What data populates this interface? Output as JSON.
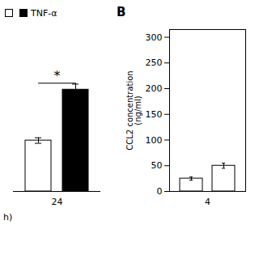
{
  "chart_data": [
    {
      "type": "bar",
      "categories": [
        "24"
      ],
      "series": [
        {
          "color": "white",
          "values": [
            55
          ],
          "errors": [
            3
          ]
        },
        {
          "name": "TNF-α",
          "color": "black",
          "values": [
            110
          ],
          "errors": [
            6
          ]
        }
      ],
      "ylim": [
        0,
        175
      ],
      "tick_labels": "x",
      "legend": "upper left",
      "xlabel": "h)",
      "annotations": [
        {
          "text": "*",
          "y": 120,
          "line_y": 117
        }
      ],
      "grid": false
    },
    {
      "type": "bar",
      "title": "B",
      "categories": [
        "4"
      ],
      "series": [
        {
          "color": "white",
          "values": [
            25
          ],
          "errors": [
            3
          ]
        },
        {
          "color": "white",
          "values": [
            50
          ],
          "errors": [
            5
          ]
        }
      ],
      "ylabel": "CCL2 concentration\n(ng/ml)",
      "ylim": [
        0,
        315
      ],
      "yticks": [
        0,
        50,
        100,
        150,
        200,
        250,
        300
      ],
      "grid": false
    }
  ]
}
